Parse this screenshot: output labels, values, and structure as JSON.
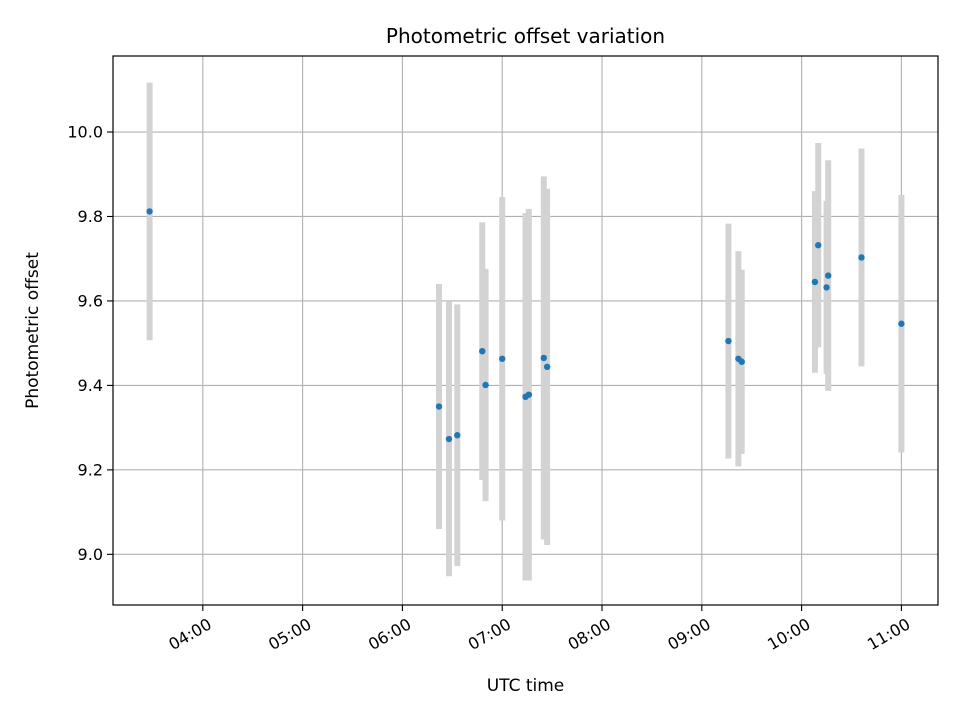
{
  "chart_data": {
    "type": "scatter",
    "title": "Photometric offset variation",
    "xlabel": "UTC time",
    "ylabel": "Photometric offset",
    "x_unit": "UTC time (HH:MM)",
    "xlim": [
      "03:06",
      "11:22"
    ],
    "ylim": [
      8.88,
      10.18
    ],
    "x_ticks": [
      "04:00",
      "05:00",
      "06:00",
      "07:00",
      "08:00",
      "09:00",
      "10:00",
      "11:00"
    ],
    "y_ticks": [
      9.0,
      9.2,
      9.4,
      9.6,
      9.8,
      10.0
    ],
    "y_tick_labels": [
      "9.0",
      "9.2",
      "9.4",
      "9.6",
      "9.8",
      "10.0"
    ],
    "grid": true,
    "legend": "none",
    "point_color": "#1f77b4",
    "errorbar_color": "#d3d3d3",
    "points": [
      {
        "t": "03:28",
        "y": 9.812,
        "err": 0.305
      },
      {
        "t": "06:22",
        "y": 9.35,
        "err": 0.29
      },
      {
        "t": "06:28",
        "y": 9.273,
        "err": 0.325
      },
      {
        "t": "06:33",
        "y": 9.282,
        "err": 0.31
      },
      {
        "t": "06:48",
        "y": 9.481,
        "err": 0.305
      },
      {
        "t": "06:50",
        "y": 9.401,
        "err": 0.275
      },
      {
        "t": "07:00",
        "y": 9.463,
        "err": 0.383
      },
      {
        "t": "07:14",
        "y": 9.373,
        "err": 0.435
      },
      {
        "t": "07:16",
        "y": 9.378,
        "err": 0.44
      },
      {
        "t": "07:25",
        "y": 9.465,
        "err": 0.43
      },
      {
        "t": "07:27",
        "y": 9.444,
        "err": 0.422
      },
      {
        "t": "09:16",
        "y": 9.505,
        "err": 0.278
      },
      {
        "t": "09:22",
        "y": 9.463,
        "err": 0.255
      },
      {
        "t": "09:24",
        "y": 9.456,
        "err": 0.218
      },
      {
        "t": "10:08",
        "y": 9.645,
        "err": 0.215
      },
      {
        "t": "10:10",
        "y": 9.732,
        "err": 0.242
      },
      {
        "t": "10:15",
        "y": 9.632,
        "err": 0.205
      },
      {
        "t": "10:16",
        "y": 9.66,
        "err": 0.273
      },
      {
        "t": "10:36",
        "y": 9.703,
        "err": 0.258
      },
      {
        "t": "11:00",
        "y": 9.546,
        "err": 0.305
      }
    ]
  }
}
